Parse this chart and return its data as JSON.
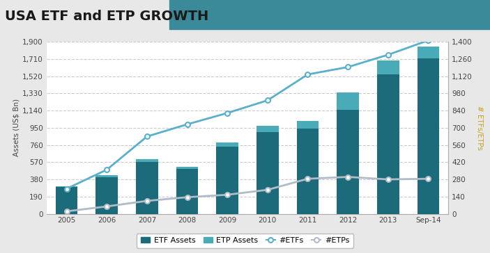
{
  "title": "USA ETF and ETP GROWTH",
  "title_bar_color": "#3a8a9a",
  "background_color": "#e8e8e8",
  "plot_bg_color": "#ffffff",
  "years": [
    "2005",
    "2006",
    "2007",
    "2008",
    "2009",
    "2010",
    "2011",
    "2012",
    "2013",
    "Sep-14"
  ],
  "etf_assets": [
    296,
    406,
    576,
    497,
    740,
    902,
    944,
    1148,
    1540,
    1720
  ],
  "etp_assets": [
    10,
    18,
    28,
    22,
    48,
    68,
    85,
    190,
    155,
    125
  ],
  "n_etfs": [
    204,
    359,
    629,
    728,
    820,
    923,
    1134,
    1194,
    1294,
    1411
  ],
  "n_etps": [
    20,
    60,
    105,
    135,
    155,
    195,
    285,
    300,
    280,
    285
  ],
  "etf_color": "#1c6b7a",
  "etp_color": "#4aabb8",
  "etfs_line_color": "#5ab0cc",
  "etps_line_color": "#b0bcc8",
  "left_ylim": [
    0,
    1900
  ],
  "left_yticks": [
    0,
    190,
    380,
    570,
    760,
    950,
    1140,
    1330,
    1520,
    1710,
    1900
  ],
  "left_ytick_labels": [
    "0",
    "190",
    "380",
    "570",
    "760",
    "950",
    "1,140",
    "1,330",
    "1,520",
    "1,710",
    "1,900"
  ],
  "right_ylim": [
    0,
    1400
  ],
  "right_yticks": [
    0,
    140,
    280,
    420,
    560,
    700,
    840,
    980,
    1120,
    1260,
    1400
  ],
  "right_ytick_labels": [
    "0",
    "140",
    "280",
    "420",
    "560",
    "700",
    "840",
    "980",
    "1,120",
    "1,260",
    "1,400"
  ],
  "ylabel_left": "Assets (US$ Bn)",
  "ylabel_right": "# ETFs/ETPs",
  "ylabel_right_color": "#c8a020",
  "grid_color": "#cccccc",
  "legend_labels": [
    "ETF Assets",
    "ETP Assets",
    "#ETFs",
    "#ETPs"
  ],
  "title_fontsize": 14,
  "axis_fontsize": 7.5,
  "tick_fontsize": 7.5
}
